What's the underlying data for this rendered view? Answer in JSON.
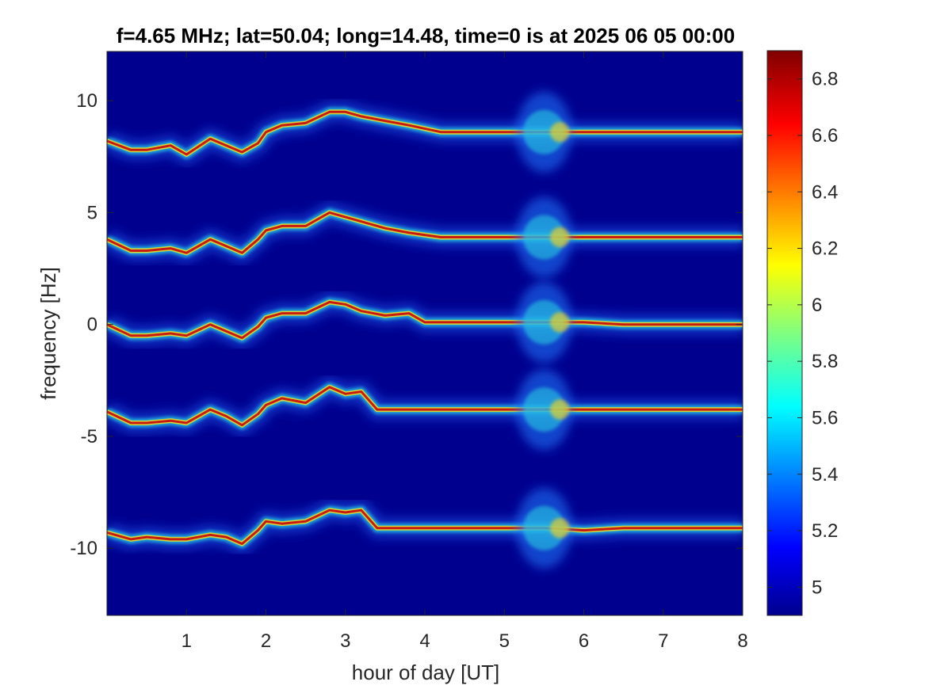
{
  "chart_data": {
    "type": "heatmap",
    "title": "f=4.65 MHz;  lat=50.04; long=14.48, time=0 is at 2025 06 05 00:00",
    "xlabel": "hour of day [UT]",
    "ylabel": "frequency [Hz]",
    "xlim": [
      0,
      8
    ],
    "ylim": [
      -13,
      12.2
    ],
    "x_ticks": [
      1,
      2,
      3,
      4,
      5,
      6,
      7,
      8
    ],
    "x_tick_labels": [
      "1",
      "2",
      "3",
      "4",
      "5",
      "6",
      "7",
      "8"
    ],
    "y_ticks": [
      10,
      5,
      0,
      -5,
      -10
    ],
    "y_tick_labels": [
      "10",
      "5",
      "0",
      "-5",
      "-10"
    ],
    "colorbar": {
      "colormap": "jet",
      "range": [
        4.9,
        6.9
      ],
      "ticks": [
        6.8,
        6.6,
        6.4,
        6.2,
        6,
        5.8,
        5.6,
        5.4,
        5.2,
        5
      ],
      "tick_labels": [
        "6.8",
        "6.6",
        "6.4",
        "6.2",
        "6",
        "5.8",
        "5.6",
        "5.4",
        "5.2",
        "5"
      ]
    },
    "background_color": "#00008f",
    "traces": [
      {
        "x": [
          0.0,
          0.3,
          0.5,
          0.8,
          1.0,
          1.3,
          1.5,
          1.7,
          1.9,
          2.0,
          2.2,
          2.5,
          2.8,
          3.0,
          3.2,
          3.5,
          3.8,
          4.2,
          4.5,
          5.0,
          5.5,
          6.0,
          6.5,
          7.0,
          7.5,
          8.0
        ],
        "y": [
          8.2,
          7.8,
          7.8,
          8.0,
          7.6,
          8.3,
          8.0,
          7.7,
          8.1,
          8.6,
          8.9,
          9.0,
          9.5,
          9.5,
          9.3,
          9.1,
          8.9,
          8.6,
          8.6,
          8.6,
          8.6,
          8.6,
          8.6,
          8.6,
          8.6,
          8.6
        ]
      },
      {
        "x": [
          0.0,
          0.3,
          0.5,
          0.8,
          1.0,
          1.3,
          1.5,
          1.7,
          1.9,
          2.0,
          2.2,
          2.5,
          2.8,
          3.0,
          3.2,
          3.5,
          3.8,
          4.2,
          4.5,
          5.0,
          5.5,
          6.0,
          6.5,
          7.0,
          7.5,
          8.0
        ],
        "y": [
          3.8,
          3.3,
          3.3,
          3.4,
          3.2,
          3.8,
          3.5,
          3.2,
          3.8,
          4.2,
          4.4,
          4.4,
          5.0,
          4.8,
          4.6,
          4.3,
          4.1,
          3.9,
          3.9,
          3.9,
          3.9,
          3.9,
          3.9,
          3.9,
          3.9,
          3.9
        ]
      },
      {
        "x": [
          0.0,
          0.3,
          0.5,
          0.8,
          1.0,
          1.3,
          1.5,
          1.7,
          1.9,
          2.0,
          2.2,
          2.5,
          2.8,
          3.0,
          3.2,
          3.5,
          3.8,
          4.0,
          4.5,
          5.0,
          5.5,
          6.0,
          6.5,
          7.0,
          7.5,
          8.0
        ],
        "y": [
          0.0,
          -0.5,
          -0.5,
          -0.4,
          -0.5,
          0.0,
          -0.3,
          -0.6,
          -0.1,
          0.3,
          0.5,
          0.5,
          1.0,
          0.9,
          0.6,
          0.4,
          0.5,
          0.1,
          0.1,
          0.1,
          0.1,
          0.1,
          0.0,
          0.0,
          0.0,
          0.0
        ]
      },
      {
        "x": [
          0.0,
          0.3,
          0.5,
          0.8,
          1.0,
          1.3,
          1.5,
          1.7,
          1.9,
          2.0,
          2.2,
          2.5,
          2.8,
          3.0,
          3.2,
          3.4,
          3.8,
          4.2,
          4.5,
          5.0,
          5.5,
          6.0,
          6.5,
          7.0,
          7.5,
          8.0
        ],
        "y": [
          -3.9,
          -4.4,
          -4.4,
          -4.3,
          -4.4,
          -3.8,
          -4.1,
          -4.5,
          -4.0,
          -3.6,
          -3.3,
          -3.5,
          -2.8,
          -3.1,
          -3.0,
          -3.8,
          -3.8,
          -3.8,
          -3.8,
          -3.8,
          -3.8,
          -3.8,
          -3.8,
          -3.8,
          -3.8,
          -3.8
        ]
      },
      {
        "x": [
          0.0,
          0.3,
          0.5,
          0.8,
          1.0,
          1.3,
          1.5,
          1.7,
          1.9,
          2.0,
          2.2,
          2.5,
          2.8,
          3.0,
          3.2,
          3.4,
          3.8,
          4.2,
          4.5,
          5.0,
          5.5,
          6.0,
          6.5,
          7.0,
          7.5,
          8.0
        ],
        "y": [
          -9.3,
          -9.6,
          -9.5,
          -9.6,
          -9.6,
          -9.4,
          -9.5,
          -9.8,
          -9.2,
          -8.8,
          -8.9,
          -8.8,
          -8.3,
          -8.4,
          -8.3,
          -9.1,
          -9.1,
          -9.1,
          -9.1,
          -9.1,
          -9.1,
          -9.2,
          -9.1,
          -9.1,
          -9.1,
          -9.1
        ]
      }
    ],
    "dropouts": [
      {
        "trace": 0,
        "from": 4.2,
        "to": 4.25
      },
      {
        "trace": 2,
        "from": 3.6,
        "to": 3.65
      },
      {
        "trace": 4,
        "from": 3.3,
        "to": 3.25
      }
    ],
    "bursts": [
      {
        "x": 5.5,
        "half_width_hours": 0.35,
        "spread_hz": 1.8,
        "peak_x": 5.7
      }
    ]
  }
}
